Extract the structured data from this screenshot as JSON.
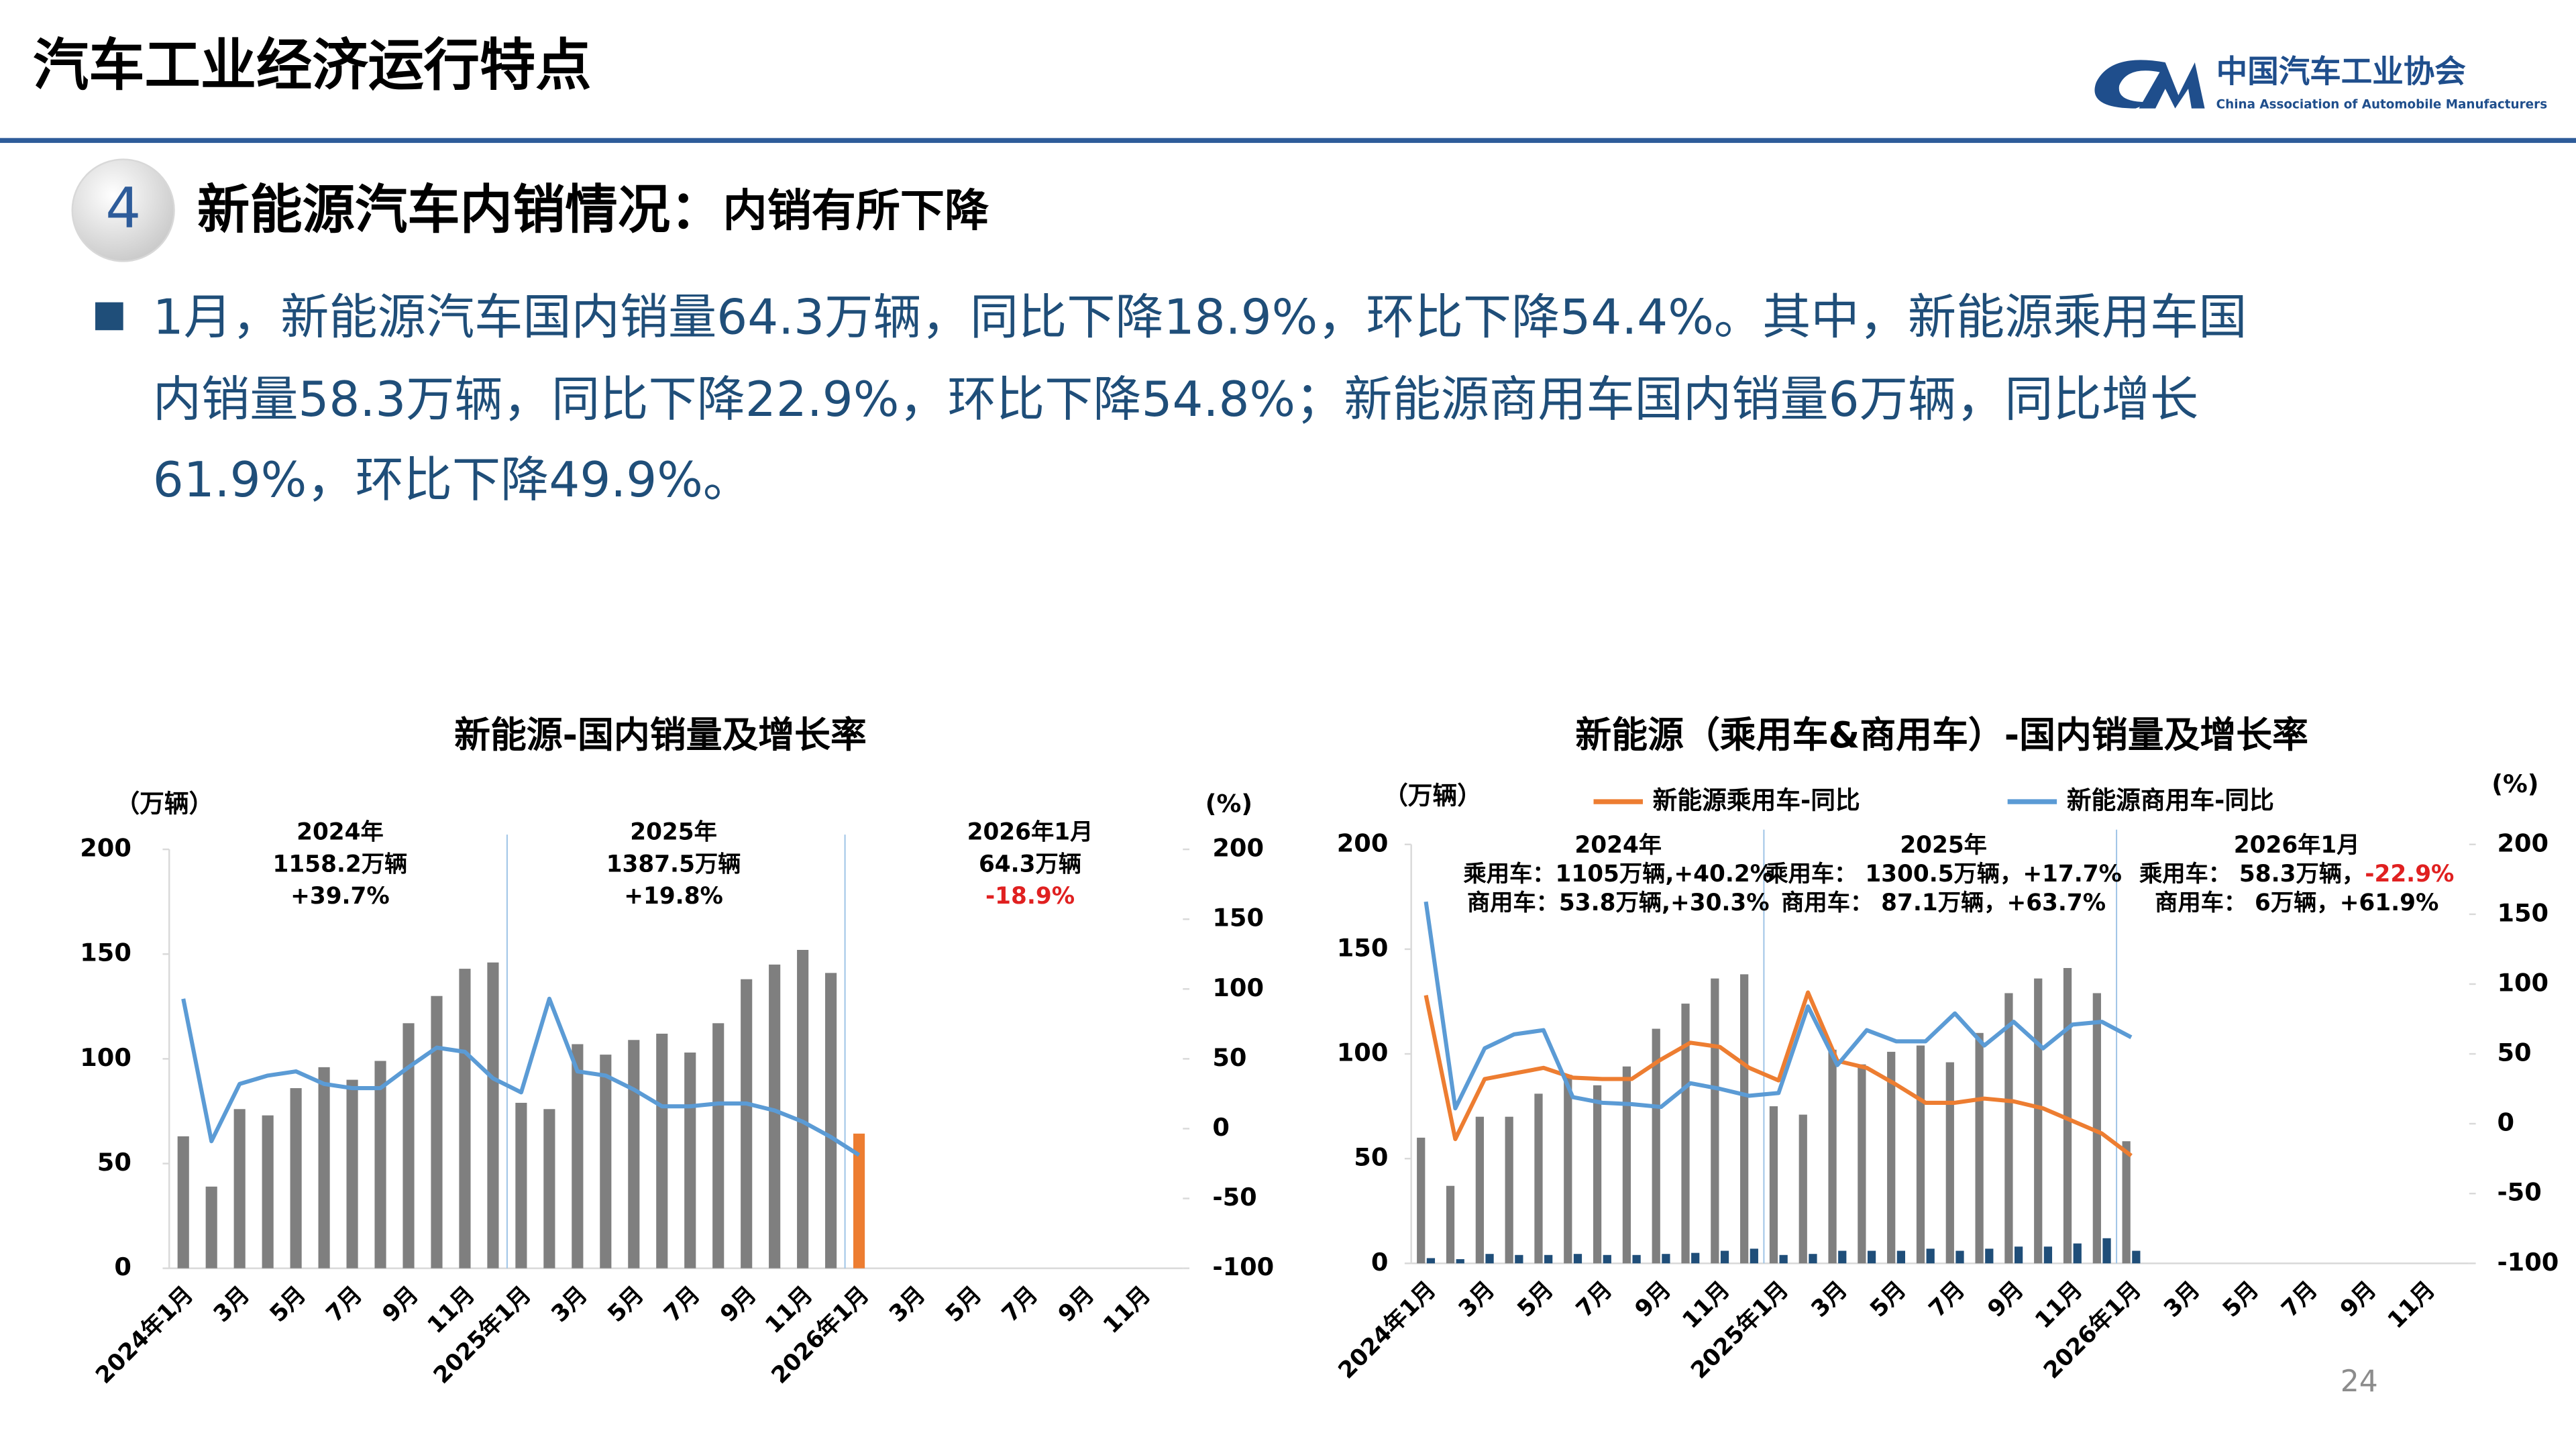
{
  "header": {
    "title": "汽车工业经济运行特点",
    "logo_cn": "中国汽车工业协会",
    "logo_en": "China Association of Automobile Manufacturers",
    "section_number": "4",
    "heading": "新能源汽车内销情况：",
    "subheading": "内销有所下降",
    "bullet_lines": [
      "1月，新能源汽车国内销量64.3万辆，同比下降18.9%，环比下降54.4%。其中，新能源乘用车国",
      "内销量58.3万辆，同比下降22.9%，环比下降54.8%；新能源商用车国内销量6万辆，同比增长",
      "61.9%，环比下降49.9%。"
    ],
    "page_number": "24"
  },
  "chart_data": [
    {
      "type": "combo",
      "title": "新能源-国内销量及增长率",
      "y_label": "（万辆）",
      "y2_label": "(%)",
      "categories": [
        "2024年1月",
        null,
        "3月",
        null,
        "5月",
        null,
        "7月",
        null,
        "9月",
        null,
        "11月",
        null,
        "2025年1月",
        null,
        "3月",
        null,
        "5月",
        null,
        "7月",
        null,
        "9月",
        null,
        "11月",
        null,
        "2026年1月",
        null,
        "3月",
        null,
        "5月",
        null,
        "7月",
        null,
        "9月",
        null,
        "11月",
        null
      ],
      "series": [
        {
          "type": "bar",
          "color": "#7f7f7f",
          "colors": [
            "#7f7f7f",
            "#7f7f7f",
            "#7f7f7f",
            "#7f7f7f",
            "#7f7f7f",
            "#7f7f7f",
            "#7f7f7f",
            "#7f7f7f",
            "#7f7f7f",
            "#7f7f7f",
            "#7f7f7f",
            "#7f7f7f",
            "#7f7f7f",
            "#7f7f7f",
            "#7f7f7f",
            "#7f7f7f",
            "#7f7f7f",
            "#7f7f7f",
            "#7f7f7f",
            "#7f7f7f",
            "#7f7f7f",
            "#7f7f7f",
            "#7f7f7f",
            "#7f7f7f",
            "#ed7d31",
            "#7f7f7f",
            "#7f7f7f",
            "#7f7f7f",
            "#7f7f7f",
            "#7f7f7f",
            "#7f7f7f",
            "#7f7f7f",
            "#7f7f7f",
            "#7f7f7f",
            "#7f7f7f",
            "#7f7f7f"
          ],
          "values": [
            63,
            39,
            76,
            73,
            86,
            96,
            90,
            99,
            117,
            130,
            143,
            146,
            79,
            76,
            107,
            102,
            109,
            112,
            103,
            117,
            138,
            145,
            152,
            141,
            64.3,
            null,
            null,
            null,
            null,
            null,
            null,
            null,
            null,
            null,
            null,
            null
          ]
        },
        {
          "type": "line",
          "axis": "y2",
          "color": "#5b9bd5",
          "values": [
            93,
            -9,
            32,
            38,
            41,
            32,
            29,
            29,
            44,
            58,
            55,
            36,
            26,
            93,
            41,
            38,
            28,
            16,
            16,
            18,
            18,
            13,
            5,
            -6,
            -18.9,
            null,
            null,
            null,
            null,
            null,
            null,
            null,
            null,
            null,
            null,
            null
          ]
        }
      ],
      "ylim": [
        0,
        200
      ],
      "yticks": [
        0,
        50,
        100,
        150,
        200
      ],
      "y2lim": [
        -100,
        200
      ],
      "y2ticks": [
        -100,
        -50,
        0,
        50,
        100,
        150,
        200
      ],
      "grid": false,
      "annotations": [
        {
          "lines": [
            [
              {
                "text": "2024年"
              }
            ],
            [
              {
                "text": "1158.2万辆"
              }
            ],
            [
              {
                "text": "+39.7%"
              }
            ]
          ]
        },
        {
          "lines": [
            [
              {
                "text": "2025年"
              }
            ],
            [
              {
                "text": "1387.5万辆"
              }
            ],
            [
              {
                "text": "+19.8%"
              }
            ]
          ]
        },
        {
          "lines": [
            [
              {
                "text": "2026年1月"
              }
            ],
            [
              {
                "text": "64.3万辆"
              }
            ],
            [
              {
                "text": "-18.9%",
                "color": "#e02020"
              }
            ]
          ]
        }
      ]
    },
    {
      "type": "combo",
      "title": "新能源（乘用车&商用车）-国内销量及增长率",
      "y_label": "（万辆）",
      "y2_label": "(%)",
      "legend": "top",
      "categories": [
        "2024年1月",
        null,
        "3月",
        null,
        "5月",
        null,
        "7月",
        null,
        "9月",
        null,
        "11月",
        null,
        "2025年1月",
        null,
        "3月",
        null,
        "5月",
        null,
        "7月",
        null,
        "9月",
        null,
        "11月",
        null,
        "2026年1月",
        null,
        "3月",
        null,
        "5月",
        null,
        "7月",
        null,
        "9月",
        null,
        "11月",
        null
      ],
      "series": [
        {
          "type": "bar",
          "color": "#7f7f7f",
          "values": [
            60,
            37,
            70,
            70,
            81,
            90,
            85,
            94,
            112,
            124,
            136,
            138,
            75,
            71,
            102,
            95,
            101,
            104,
            96,
            110,
            129,
            136,
            141,
            129,
            58.3,
            null,
            null,
            null,
            null,
            null,
            null,
            null,
            null,
            null,
            null,
            null
          ]
        },
        {
          "type": "bar",
          "color": "#1f4e79",
          "values": [
            2.5,
            2,
            4.5,
            4,
            4,
            4.5,
            4,
            4,
            4.5,
            5,
            6,
            7,
            4,
            4.5,
            6,
            6,
            6,
            7,
            6,
            7,
            8,
            8,
            9.5,
            12,
            6,
            null,
            null,
            null,
            null,
            null,
            null,
            null,
            null,
            null,
            null,
            null
          ]
        },
        {
          "type": "line",
          "axis": "y2",
          "name": "新能源乘用车-同比",
          "color": "#ed7d31",
          "values": [
            92,
            -11,
            32,
            36,
            40,
            33,
            32,
            32,
            46,
            58,
            55,
            40,
            31,
            94,
            45,
            40,
            28,
            15,
            15,
            18,
            16,
            11,
            2,
            -7,
            -22.9,
            null,
            null,
            null,
            null,
            null,
            null,
            null,
            null,
            null,
            null,
            null
          ]
        },
        {
          "type": "line",
          "axis": "y2",
          "name": "新能源商用车-同比",
          "color": "#5b9bd5",
          "values": [
            159,
            11,
            54,
            64,
            67,
            19,
            15,
            14,
            12,
            29,
            25,
            20,
            22,
            84,
            42,
            67,
            59,
            59,
            79,
            56,
            73,
            54,
            71,
            73,
            61.9,
            null,
            null,
            null,
            null,
            null,
            null,
            null,
            null,
            null,
            null,
            null
          ]
        }
      ],
      "ylim": [
        0,
        200
      ],
      "yticks": [
        0,
        50,
        100,
        150,
        200
      ],
      "y2lim": [
        -100,
        200
      ],
      "y2ticks": [
        -100,
        -50,
        0,
        50,
        100,
        150,
        200
      ],
      "grid": false,
      "annotations": [
        {
          "lines": [
            [
              {
                "text": "2024年"
              }
            ],
            [
              {
                "text": "乘用车：1105万辆,+40.2%"
              }
            ],
            [
              {
                "text": "商用车：53.8万辆,+30.3%"
              }
            ]
          ]
        },
        {
          "lines": [
            [
              {
                "text": "2025年"
              }
            ],
            [
              {
                "text": "乘用车： 1300.5万辆，+17.7%"
              }
            ],
            [
              {
                "text": "商用车： 87.1万辆，+63.7%"
              }
            ]
          ]
        },
        {
          "lines": [
            [
              {
                "text": "2026年1月"
              }
            ],
            [
              {
                "text": "乘用车： 58.3万辆，"
              },
              {
                "text": "-22.9%",
                "color": "#e02020"
              }
            ],
            [
              {
                "text": "商用车： 6万辆，+61.9%"
              }
            ]
          ]
        }
      ]
    }
  ]
}
